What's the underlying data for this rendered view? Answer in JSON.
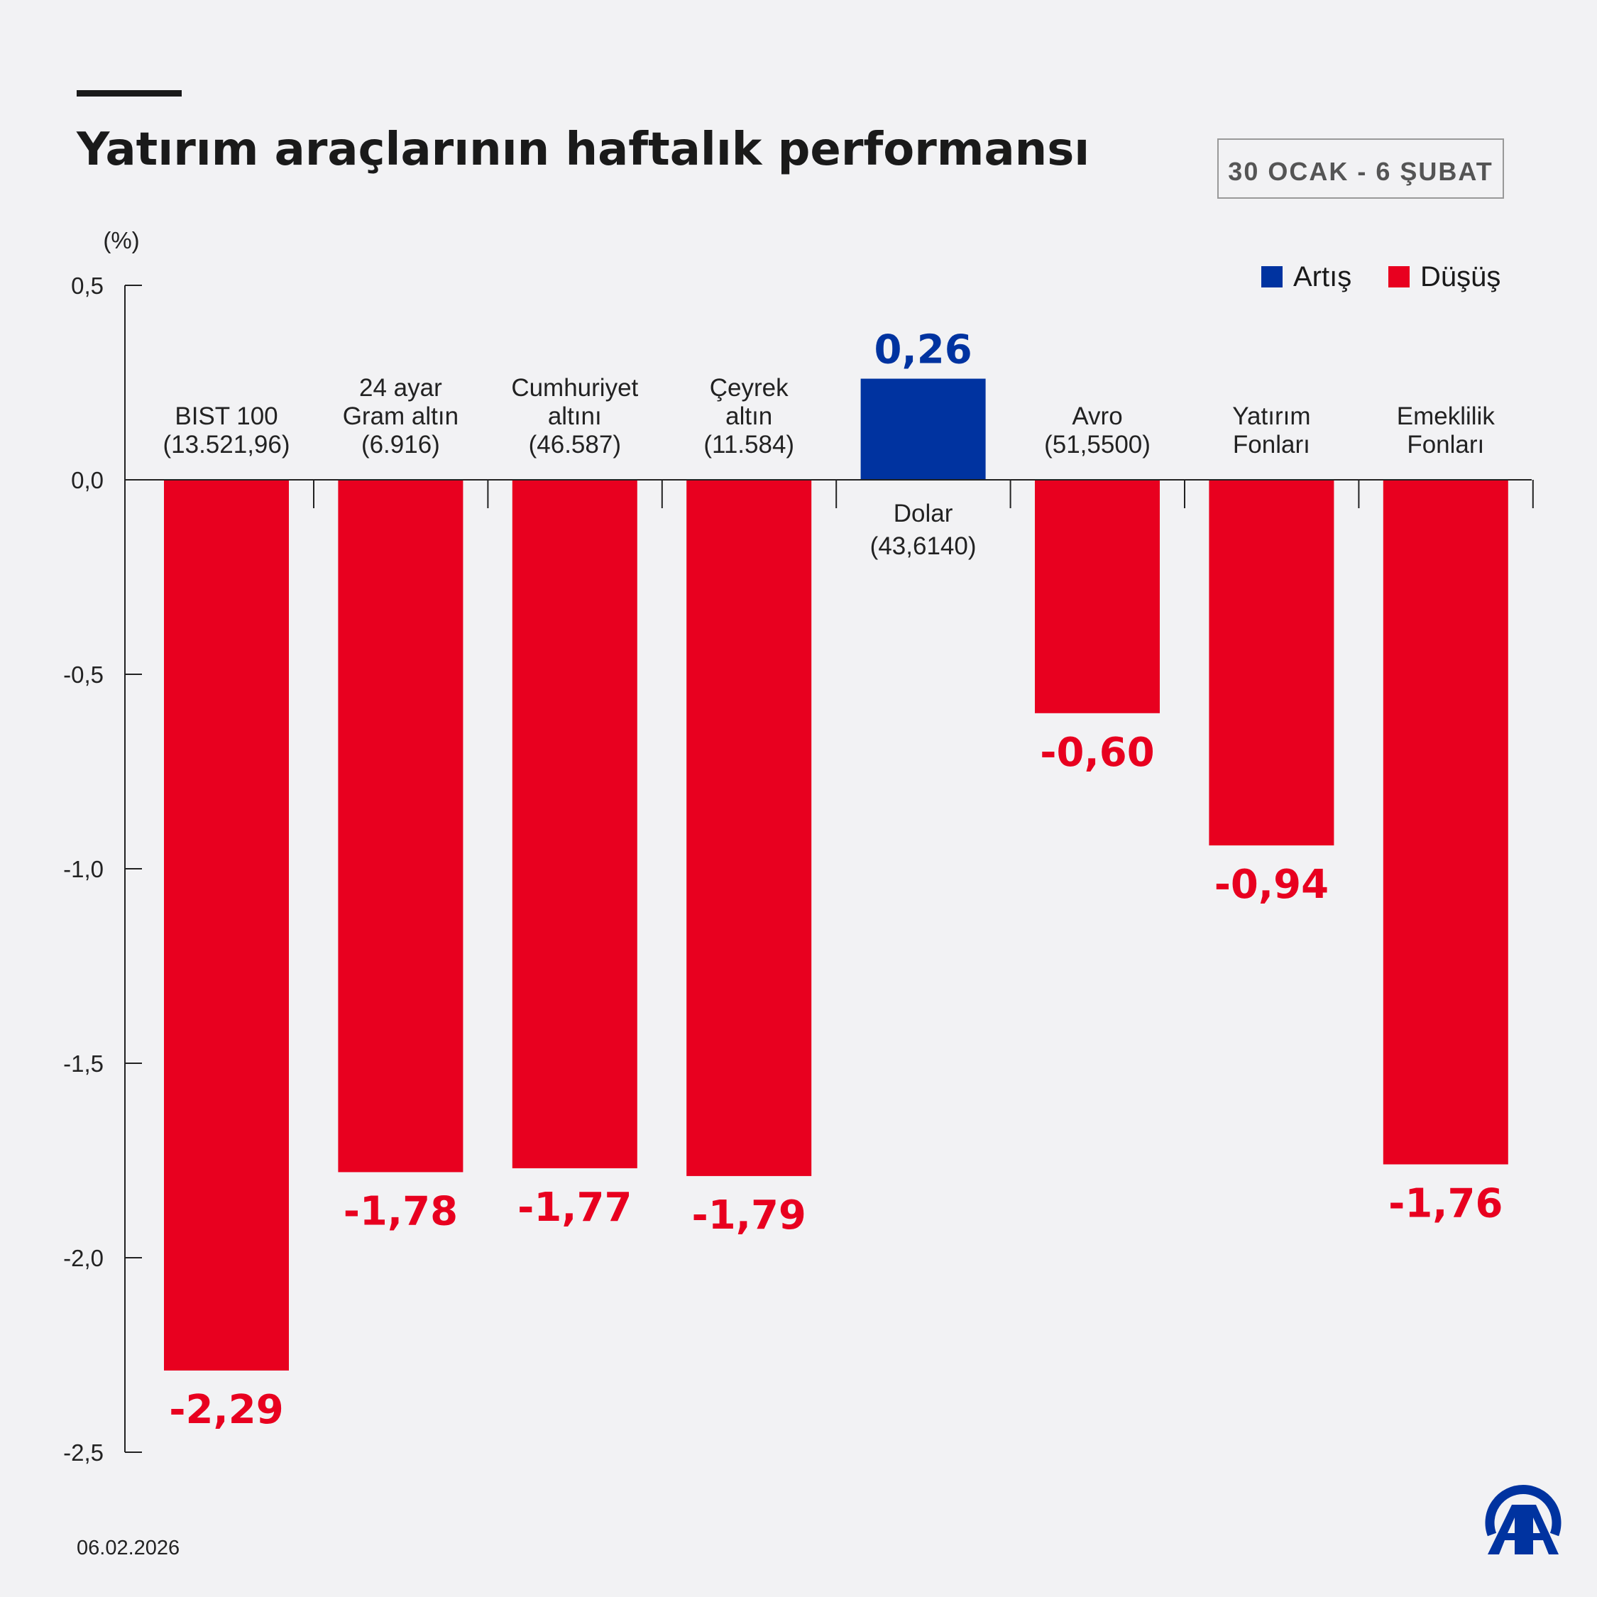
{
  "header": {
    "title": "Yatırım araçlarının haftalık performansı",
    "date_range": "30 OCAK - 6 ŞUBAT"
  },
  "footer": {
    "date": "06.02.2026",
    "logo": "AA"
  },
  "colors": {
    "increase": "#0033a0",
    "decrease": "#e8001f"
  },
  "chart_data": {
    "type": "bar",
    "ylabel": "(%)",
    "ylim": [
      -2.5,
      0.5
    ],
    "yticks": [
      "0,5",
      "0,0",
      "-0,5",
      "-1,0",
      "-1,5",
      "-2,0",
      "-2,5"
    ],
    "grid": false,
    "legend": {
      "position": "top-right",
      "entries": [
        "Artış",
        "Düşüş"
      ]
    },
    "categories": [
      [
        "BIST 100",
        "(13.521,96)"
      ],
      [
        "24 ayar",
        "Gram altın",
        "(6.916)"
      ],
      [
        "Cumhuriyet",
        "altını",
        "(46.587)"
      ],
      [
        "Çeyrek",
        "altın",
        "(11.584)"
      ],
      [
        "Dolar",
        "(43,6140)"
      ],
      [
        "Avro",
        "(51,5500)"
      ],
      [
        "Yatırım",
        "Fonları"
      ],
      [
        "Emeklilik",
        "Fonları"
      ]
    ],
    "values": [
      -2.29,
      -1.78,
      -1.77,
      -1.79,
      0.26,
      -0.6,
      -0.94,
      -1.76
    ],
    "value_labels": [
      "-2,29",
      "-1,78",
      "-1,77",
      "-1,79",
      "0,26",
      "-0,60",
      "-0,94",
      "-1,76"
    ]
  }
}
